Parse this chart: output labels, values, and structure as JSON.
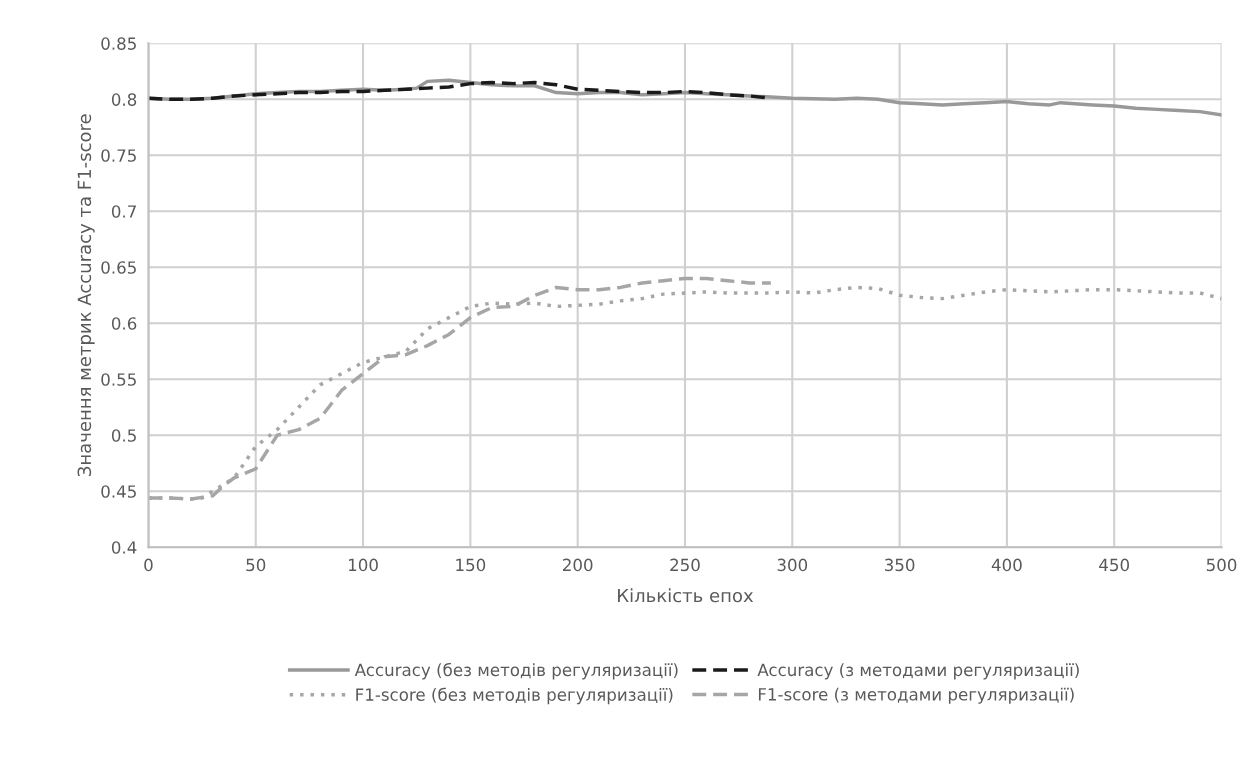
{
  "chart_data": {
    "type": "line",
    "xlabel": "Кількість епох",
    "ylabel": "Значення метрик Accuracy та F1-score",
    "xlim": [
      0,
      500
    ],
    "xticks": [
      0,
      50,
      100,
      150,
      200,
      250,
      300,
      350,
      400,
      450,
      500
    ],
    "ylim": [
      0.4,
      0.85
    ],
    "yticks": [
      0.4,
      0.45,
      0.5,
      0.55,
      0.6,
      0.65,
      0.7,
      0.75,
      0.8,
      0.85
    ],
    "grid": true,
    "legend": "bottom",
    "marker": "none",
    "series": [
      {
        "name": "Accuracy (без методів регуляризації)",
        "color": "#999999",
        "line_style": "solid",
        "x": [
          0,
          10,
          20,
          30,
          40,
          50,
          60,
          70,
          80,
          90,
          100,
          110,
          120,
          125,
          130,
          140,
          150,
          160,
          170,
          180,
          190,
          200,
          210,
          220,
          230,
          240,
          250,
          260,
          270,
          280,
          290,
          300,
          320,
          330,
          340,
          350,
          360,
          370,
          380,
          390,
          400,
          410,
          420,
          425,
          440,
          450,
          460,
          470,
          480,
          490,
          500
        ],
        "values": [
          0.801,
          0.8,
          0.8,
          0.801,
          0.803,
          0.805,
          0.806,
          0.807,
          0.807,
          0.808,
          0.809,
          0.808,
          0.809,
          0.81,
          0.816,
          0.817,
          0.815,
          0.813,
          0.812,
          0.812,
          0.806,
          0.805,
          0.806,
          0.806,
          0.804,
          0.805,
          0.806,
          0.805,
          0.804,
          0.803,
          0.802,
          0.801,
          0.8,
          0.801,
          0.8,
          0.797,
          0.796,
          0.795,
          0.796,
          0.797,
          0.798,
          0.796,
          0.795,
          0.797,
          0.795,
          0.794,
          0.792,
          0.791,
          0.79,
          0.789,
          0.786
        ]
      },
      {
        "name": "F1-score (без методів регуляризації)",
        "color": "#a6a6a6",
        "line_style": "dotted",
        "x": [
          0,
          10,
          20,
          25,
          30,
          40,
          50,
          60,
          70,
          80,
          90,
          100,
          110,
          120,
          130,
          140,
          150,
          160,
          170,
          180,
          190,
          200,
          210,
          220,
          230,
          240,
          250,
          260,
          270,
          280,
          290,
          300,
          310,
          320,
          330,
          340,
          350,
          360,
          370,
          380,
          390,
          400,
          410,
          420,
          430,
          440,
          450,
          460,
          470,
          480,
          490,
          500
        ],
        "values": [
          0.444,
          0.444,
          0.443,
          0.444,
          0.45,
          0.462,
          0.49,
          0.505,
          0.525,
          0.545,
          0.555,
          0.565,
          0.57,
          0.575,
          0.595,
          0.605,
          0.615,
          0.618,
          0.617,
          0.618,
          0.615,
          0.616,
          0.617,
          0.62,
          0.622,
          0.626,
          0.627,
          0.628,
          0.627,
          0.627,
          0.627,
          0.628,
          0.627,
          0.63,
          0.632,
          0.631,
          0.625,
          0.623,
          0.622,
          0.625,
          0.628,
          0.63,
          0.629,
          0.628,
          0.629,
          0.63,
          0.63,
          0.629,
          0.628,
          0.627,
          0.627,
          0.622
        ]
      },
      {
        "name": "Accuracy (з методами регуляризації)",
        "color": "#1a1a1a",
        "line_style": "dashed",
        "x": [
          0,
          10,
          20,
          30,
          40,
          50,
          60,
          70,
          80,
          90,
          100,
          110,
          120,
          130,
          140,
          150,
          160,
          170,
          180,
          190,
          200,
          210,
          220,
          230,
          240,
          250,
          260,
          270,
          280,
          290
        ],
        "values": [
          0.801,
          0.8,
          0.8,
          0.801,
          0.803,
          0.804,
          0.805,
          0.806,
          0.806,
          0.807,
          0.807,
          0.808,
          0.809,
          0.81,
          0.811,
          0.814,
          0.815,
          0.814,
          0.815,
          0.813,
          0.809,
          0.808,
          0.807,
          0.806,
          0.806,
          0.807,
          0.806,
          0.804,
          0.803,
          0.801
        ]
      },
      {
        "name": "F1-score (з методами регуляризації)",
        "color": "#a6a6a6",
        "line_style": "dashed",
        "x": [
          0,
          10,
          20,
          30,
          35,
          40,
          50,
          55,
          60,
          70,
          80,
          90,
          100,
          110,
          120,
          130,
          140,
          150,
          160,
          170,
          180,
          190,
          200,
          210,
          220,
          230,
          240,
          250,
          260,
          270,
          280,
          290
        ],
        "values": [
          0.444,
          0.444,
          0.443,
          0.446,
          0.455,
          0.462,
          0.47,
          0.485,
          0.5,
          0.505,
          0.515,
          0.54,
          0.555,
          0.57,
          0.572,
          0.58,
          0.59,
          0.605,
          0.614,
          0.615,
          0.625,
          0.632,
          0.63,
          0.63,
          0.632,
          0.636,
          0.638,
          0.64,
          0.64,
          0.638,
          0.636,
          0.636
        ]
      }
    ]
  }
}
